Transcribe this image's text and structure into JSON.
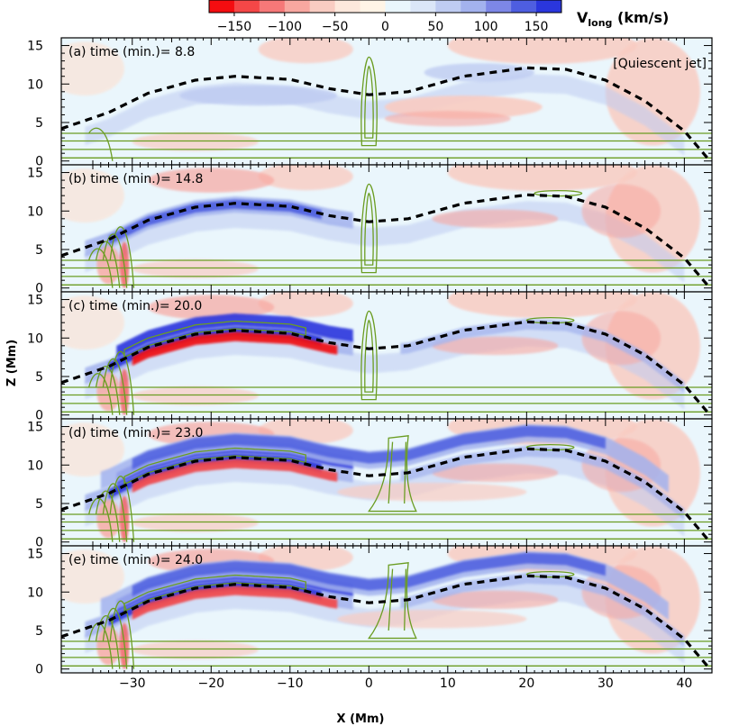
{
  "chart_data": {
    "type": "heatmap",
    "xlabel": "X (Mm)",
    "ylabel": "Z (Mm)",
    "xlim": [
      -39,
      43.5
    ],
    "ylim": [
      -0.5,
      16
    ],
    "x_ticks": [
      -30,
      -20,
      -10,
      0,
      10,
      20,
      30,
      40
    ],
    "x_tick_labels": [
      "−30",
      "−20",
      "−10",
      "0",
      "10",
      "20",
      "30",
      "40"
    ],
    "y_ticks": [
      0,
      5,
      10,
      15
    ],
    "y_tick_labels": [
      "0",
      "5",
      "10",
      "15"
    ],
    "colorbar": {
      "title_main": "V",
      "title_sub": "long",
      "title_unit": " (km/s)",
      "range": [
        -175,
        175
      ],
      "ticks": [
        -150,
        -100,
        -50,
        0,
        50,
        100,
        150
      ],
      "tick_labels": [
        "−150",
        "−100",
        "−50",
        "0",
        "50",
        "100",
        "150"
      ],
      "colors": [
        "#f40d10",
        "#f54747",
        "#f67878",
        "#f8a7a0",
        "#f9ccc2",
        "#fde8dc",
        "#fff4e6",
        "#eaf6fc",
        "#dbe6f8",
        "#bfccf2",
        "#a3b2ee",
        "#7d87e6",
        "#4e5ee0",
        "#2a36dd"
      ]
    },
    "annotation": "[Quiescent jet]",
    "flux_rope_axis_dashed": [
      [
        -39,
        4.2
      ],
      [
        -33,
        6.3
      ],
      [
        -28,
        8.8
      ],
      [
        -22,
        10.5
      ],
      [
        -17,
        11.0
      ],
      [
        -10,
        10.6
      ],
      [
        -5,
        9.4
      ],
      [
        0,
        8.6
      ],
      [
        5,
        9.0
      ],
      [
        12,
        11.0
      ],
      [
        20,
        12.1
      ],
      [
        25,
        11.9
      ],
      [
        30,
        10.5
      ],
      [
        35,
        7.8
      ],
      [
        40,
        3.9
      ],
      [
        43,
        0.3
      ]
    ],
    "panels": [
      {
        "label": "(a)",
        "text": "time (min.)=",
        "time": "8.8"
      },
      {
        "label": "(b)",
        "text": "time (min.)=",
        "time": "14.8"
      },
      {
        "label": "(c)",
        "text": "time (min.)=",
        "time": "20.0"
      },
      {
        "label": "(d)",
        "text": "time (min.)=",
        "time": "23.0"
      },
      {
        "label": "(e)",
        "text": "time (min.)=",
        "time": "24.0"
      }
    ],
    "colors": {
      "background": "#eaf6fc",
      "contour_green": "#6b9d22",
      "dashed_line": "#000000"
    }
  }
}
